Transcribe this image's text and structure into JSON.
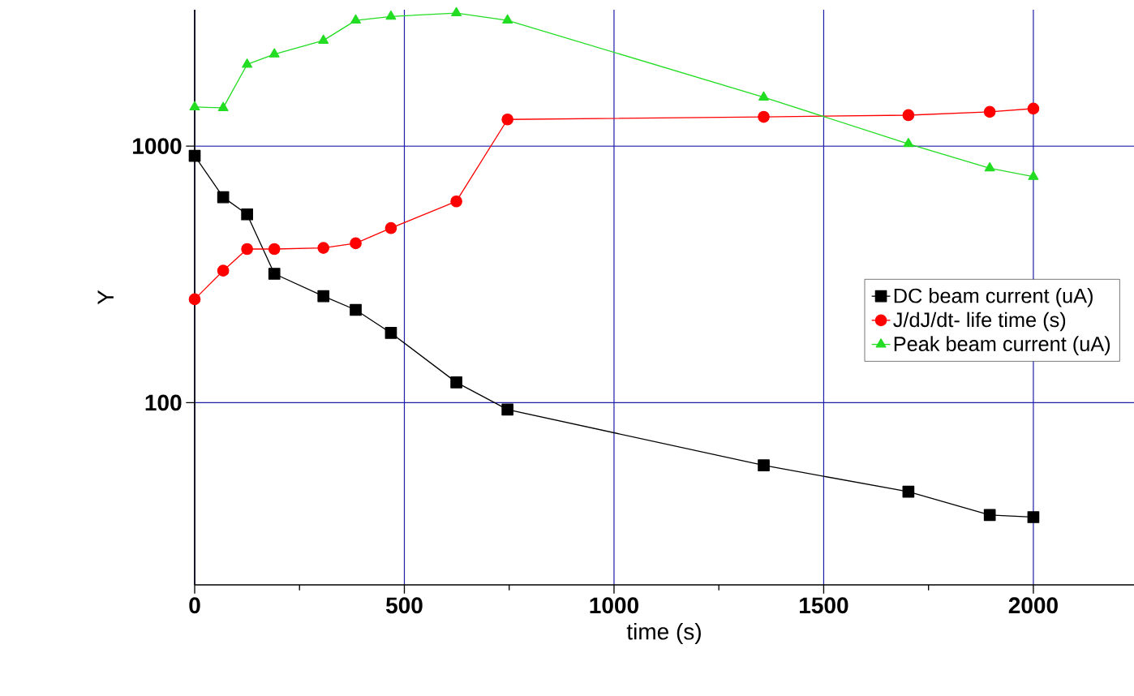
{
  "chart_data": {
    "type": "line",
    "xlabel": "time (s)",
    "ylabel": "Y",
    "x": [
      0,
      68,
      125,
      190,
      307,
      384,
      468,
      624,
      746,
      1357,
      1702,
      1896,
      2000
    ],
    "series": [
      {
        "name": "DC beam current (uA)",
        "color": "#000000",
        "marker": "square",
        "values": [
          916,
          632,
          542,
          318,
          260,
          230,
          187,
          120,
          94,
          57,
          45,
          36.5,
          35.8
        ]
      },
      {
        "name": "J/dJ/dt- life time (s)",
        "color": "#ff0000",
        "marker": "circle",
        "values": [
          253,
          327,
          397,
          397,
          401,
          418,
          479,
          609,
          1270,
          1300,
          1320,
          1360,
          1400
        ]
      },
      {
        "name": "Peak beam current (uA)",
        "color": "#22dd22",
        "marker": "triangle",
        "values": [
          1420,
          1410,
          2080,
          2280,
          2580,
          3090,
          3200,
          3300,
          3090,
          1550,
          1020,
          820,
          760
        ]
      }
    ],
    "xlim": [
      0,
      2240
    ],
    "ylim": [
      19.5,
      3400
    ],
    "xticks": [
      0,
      500,
      1000,
      1500,
      2000
    ],
    "yticks": [
      100,
      1000
    ],
    "log": "y",
    "grid": true,
    "legend": "right",
    "line_style": "solid"
  }
}
